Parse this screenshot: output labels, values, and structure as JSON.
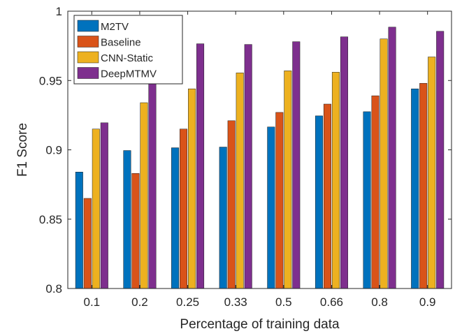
{
  "chart_data": {
    "type": "bar",
    "xlabel": "Percentage of training data",
    "ylabel": "F1 Score",
    "ylim": [
      0.8,
      1.0
    ],
    "yticks": [
      "0.8",
      "0.85",
      "0.9",
      "0.95",
      "1"
    ],
    "grid": false,
    "legend_position": "top-left",
    "categories": [
      "0.1",
      "0.2",
      "0.25",
      "0.33",
      "0.5",
      "0.66",
      "0.8",
      "0.9"
    ],
    "series": [
      {
        "name": "M2TV",
        "color": "#0072bd",
        "values": [
          0.884,
          0.8995,
          0.9015,
          0.902,
          0.9165,
          0.9245,
          0.9275,
          0.944
        ]
      },
      {
        "name": "Baseline",
        "color": "#d95319",
        "values": [
          0.865,
          0.883,
          0.915,
          0.921,
          0.927,
          0.933,
          0.939,
          0.948
        ]
      },
      {
        "name": "CNN-Static",
        "color": "#edb120",
        "values": [
          0.915,
          0.934,
          0.944,
          0.9555,
          0.957,
          0.956,
          0.98,
          0.967
        ]
      },
      {
        "name": "DeepMTMV",
        "color": "#7e2f8e",
        "values": [
          0.9195,
          0.95,
          0.9765,
          0.976,
          0.978,
          0.9815,
          0.9885,
          0.9855
        ]
      }
    ]
  }
}
